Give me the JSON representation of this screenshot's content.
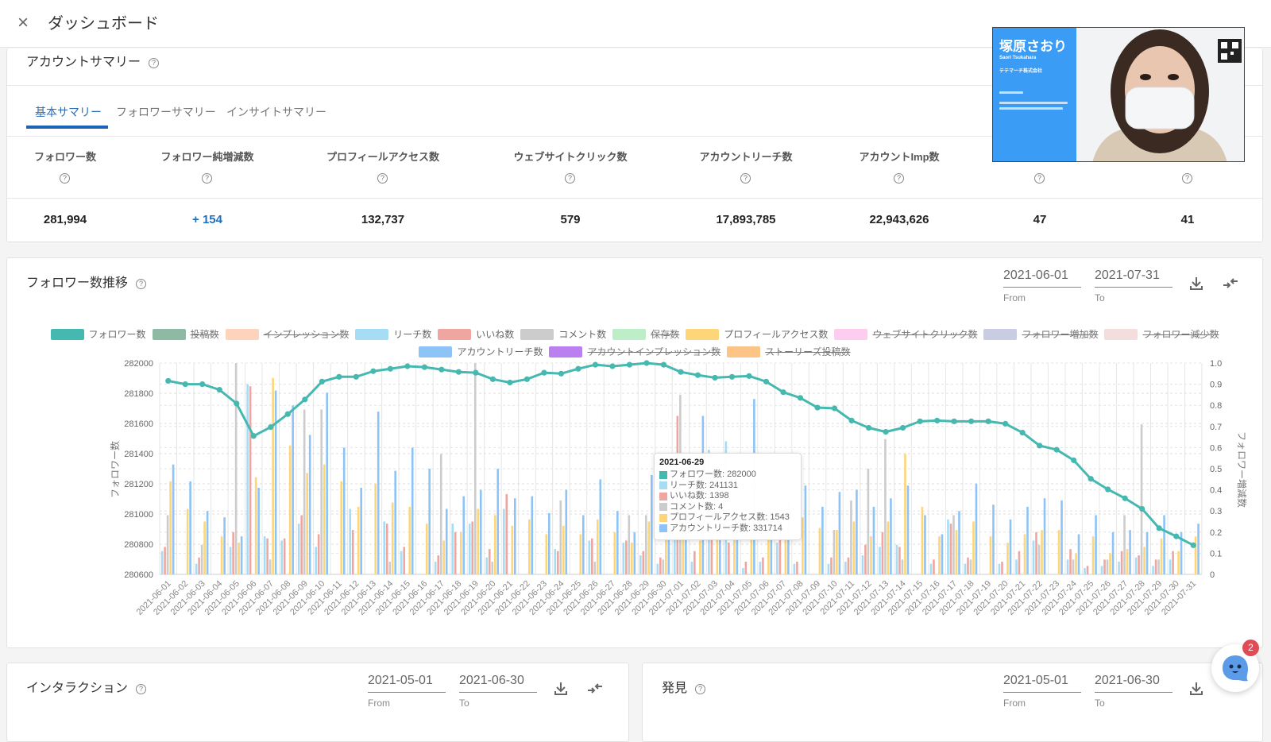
{
  "header": {
    "title": "ダッシュボード",
    "close": "×"
  },
  "summary": {
    "title": "アカウントサマリー",
    "help": "?",
    "tabs": [
      {
        "label": "基本サマリー",
        "active": true
      },
      {
        "label": "フォロワーサマリー",
        "active": false
      },
      {
        "label": "インサイトサマリー",
        "active": false
      }
    ],
    "metrics": [
      {
        "label": "フォロワー数",
        "value": "281,994"
      },
      {
        "label": "フォロワー純増減数",
        "value": "+ 154"
      },
      {
        "label": "プロフィールアクセス数",
        "value": "132,737"
      },
      {
        "label": "ウェブサイトクリック数",
        "value": "579"
      },
      {
        "label": "アカウントリーチ数",
        "value": "17,893,785"
      },
      {
        "label": "アカウントImp数",
        "value": "22,943,626"
      },
      {
        "label": "",
        "value": "47"
      },
      {
        "label": "",
        "value": "41"
      }
    ]
  },
  "trend": {
    "title": "フォロワー数推移",
    "from": {
      "value": "2021-06-01",
      "label": "From"
    },
    "to": {
      "value": "2021-07-31",
      "label": "To"
    },
    "tooltip": {
      "date": "2021-06-29",
      "rows": [
        {
          "label": "フォロワー数: 282000",
          "color": "#45b8b0"
        },
        {
          "label": "リーチ数: 241131",
          "color": "#a6ddf5"
        },
        {
          "label": "いいね数: 1398",
          "color": "#f0a6a0"
        },
        {
          "label": "コメント数: 4",
          "color": "#cccccc"
        },
        {
          "label": "プロフィールアクセス数: 1543",
          "color": "#fcd679"
        },
        {
          "label": "アカウントリーチ数: 331714",
          "color": "#8ec3f7"
        }
      ]
    }
  },
  "interaction": {
    "title": "インタラクション",
    "from": {
      "value": "2021-05-01",
      "label": "From"
    },
    "to": {
      "value": "2021-06-30",
      "label": "To"
    }
  },
  "discovery": {
    "title": "発見",
    "from": {
      "value": "2021-05-01",
      "label": "From"
    },
    "to": {
      "value": "2021-06-30",
      "label": "To"
    }
  },
  "video": {
    "name": "塚原さおり",
    "name_en": "Saori Tsukahara",
    "company": "テテマーチ株式会社"
  },
  "chat": {
    "badge": "2"
  },
  "colors": {
    "accent": "#1f6fc0",
    "line": "#45b8b0",
    "badge": "#e04b55",
    "video_panel": "#3a9cf4"
  },
  "chart_data": {
    "type": "bar+line",
    "title": "フォロワー数推移",
    "xlabel": "",
    "ylabel_left": "フォロワー数",
    "ylabel_right": "フォロワー増減数",
    "y_left": {
      "range": [
        280600,
        282000
      ],
      "ticks": [
        "280600",
        "280800",
        "281000",
        "281200",
        "281400",
        "281600",
        "281800",
        "282000"
      ]
    },
    "y_right": {
      "range": [
        0,
        1
      ],
      "ticks": [
        "0",
        "0.1",
        "0.2",
        "0.3",
        "0.4",
        "0.5",
        "0.6",
        "0.7",
        "0.8",
        "0.9",
        "1.0"
      ]
    },
    "grid": true,
    "legend_position": "top-center",
    "legend": [
      {
        "name": "フォロワー数",
        "color": "#45b8b0",
        "hidden": false
      },
      {
        "name": "投稿数",
        "color": "#8db9a5",
        "hidden": true
      },
      {
        "name": "インプレッション数",
        "color": "#fdd3bb",
        "hidden": true
      },
      {
        "name": "リーチ数",
        "color": "#a6ddf5",
        "hidden": false
      },
      {
        "name": "いいね数",
        "color": "#f0a6a0",
        "hidden": false
      },
      {
        "name": "コメント数",
        "color": "#cccccc",
        "hidden": false
      },
      {
        "name": "保存数",
        "color": "#bdeec8",
        "hidden": true
      },
      {
        "name": "プロフィールアクセス数",
        "color": "#fcd679",
        "hidden": false
      },
      {
        "name": "ウェブサイトクリック数",
        "color": "#fdcdef",
        "hidden": true
      },
      {
        "name": "フォロワー増加数",
        "color": "#c9cce2",
        "hidden": true
      },
      {
        "name": "フォロワー減少数",
        "color": "#f3dddd",
        "hidden": true
      },
      {
        "name": "アカウントリーチ数",
        "color": "#8ec3f7",
        "hidden": false
      },
      {
        "name": "アカウントインプレッション数",
        "color": "#bb80f0",
        "hidden": true
      },
      {
        "name": "ストーリーズ投稿数",
        "color": "#fcc487",
        "hidden": true
      }
    ],
    "categories": [
      "2021-06-01",
      "2021-06-02",
      "2021-06-03",
      "2021-06-04",
      "2021-06-05",
      "2021-06-06",
      "2021-06-07",
      "2021-06-08",
      "2021-06-09",
      "2021-06-10",
      "2021-06-11",
      "2021-06-12",
      "2021-06-13",
      "2021-06-14",
      "2021-06-15",
      "2021-06-16",
      "2021-06-17",
      "2021-06-18",
      "2021-06-19",
      "2021-06-20",
      "2021-06-21",
      "2021-06-22",
      "2021-06-23",
      "2021-06-24",
      "2021-06-25",
      "2021-06-26",
      "2021-06-27",
      "2021-06-28",
      "2021-06-29",
      "2021-06-30",
      "2021-07-01",
      "2021-07-02",
      "2021-07-03",
      "2021-07-04",
      "2021-07-05",
      "2021-07-06",
      "2021-07-07",
      "2021-07-08",
      "2021-07-09",
      "2021-07-10",
      "2021-07-11",
      "2021-07-12",
      "2021-07-13",
      "2021-07-14",
      "2021-07-15",
      "2021-07-16",
      "2021-07-17",
      "2021-07-18",
      "2021-07-19",
      "2021-07-20",
      "2021-07-21",
      "2021-07-22",
      "2021-07-23",
      "2021-07-24",
      "2021-07-25",
      "2021-07-26",
      "2021-07-27",
      "2021-07-28",
      "2021-07-29",
      "2021-07-30",
      "2021-07-31"
    ],
    "line_series": {
      "name": "フォロワー数",
      "color": "#45b8b0",
      "axis": "left",
      "values": [
        281882,
        281860,
        281860,
        281823,
        281732,
        281517,
        281576,
        281662,
        281759,
        281877,
        281909,
        281909,
        281946,
        281962,
        281979,
        281973,
        281957,
        281941,
        281936,
        281893,
        281871,
        281893,
        281936,
        281930,
        281962,
        281989,
        281979,
        281989,
        282000,
        281989,
        281941,
        281920,
        281903,
        281909,
        281914,
        281877,
        281807,
        281769,
        281705,
        281700,
        281619,
        281571,
        281544,
        281571,
        281614,
        281619,
        281614,
        281614,
        281614,
        281598,
        281539,
        281453,
        281426,
        281356,
        281233,
        281163,
        281104,
        281034,
        280906,
        280852,
        280793
      ]
    },
    "bar_series_note": "bar values are normalized heights (0-1) relative to each series' own hidden axis",
    "bar_series": [
      {
        "key": "reach",
        "name": "リーチ数",
        "color": "#a6ddf5",
        "values": [
          0.11,
          0,
          0.05,
          0,
          0.13,
          0.9,
          0.18,
          0.16,
          0.24,
          0.13,
          0,
          0.31,
          0,
          0.25,
          0.11,
          0,
          0.06,
          0.24,
          0.24,
          0.08,
          0.31,
          0,
          0,
          0.12,
          0,
          0.16,
          0,
          0.15,
          0.09,
          0.05,
          0.2,
          0.06,
          0.59,
          0.63,
          0.03,
          0.06,
          0.15,
          0.05,
          0,
          0.05,
          0.06,
          0.09,
          0.13,
          0.14,
          0,
          0.05,
          0.26,
          0.05,
          0,
          0.05,
          0.07,
          0.16,
          0,
          0.07,
          0.03,
          0.04,
          0.06,
          0.08,
          0.04,
          0.07,
          0
        ]
      },
      {
        "key": "likes",
        "name": "いいね数",
        "color": "#f0a6a0",
        "values": [
          0.13,
          0,
          0.08,
          0,
          0.2,
          0.89,
          0.17,
          0.17,
          0.28,
          0.19,
          0,
          0.21,
          0,
          0.24,
          0.13,
          0,
          0.09,
          0.2,
          0.25,
          0.12,
          0.38,
          0,
          0,
          0.11,
          0,
          0.17,
          0,
          0.16,
          0.11,
          0.08,
          0.75,
          0.11,
          0.2,
          0.15,
          0.06,
          0.08,
          0.2,
          0.06,
          0,
          0.08,
          0.08,
          0.14,
          0.2,
          0.13,
          0,
          0.07,
          0.24,
          0.08,
          0,
          0.06,
          0.11,
          0.2,
          0,
          0.12,
          0.04,
          0.07,
          0.11,
          0.09,
          0.07,
          0.11,
          0
        ]
      },
      {
        "key": "comments",
        "name": "コメント数",
        "color": "#cccccc",
        "values": [
          0.28,
          0,
          0.14,
          0,
          1.0,
          0,
          0.07,
          0,
          0.78,
          0.78,
          0,
          0,
          0,
          0.06,
          0,
          0,
          0.57,
          0,
          1.0,
          0.06,
          0,
          0,
          0,
          0.35,
          0,
          0.06,
          0,
          0.28,
          0.28,
          0.07,
          0.85,
          0,
          0,
          0,
          0,
          0,
          0,
          0,
          0,
          0.21,
          0.35,
          0.5,
          0.64,
          0.07,
          0,
          0,
          0.28,
          0.07,
          0,
          0,
          0,
          0.14,
          0,
          0.07,
          0,
          0.07,
          0.28,
          0.71,
          0.07,
          0,
          0
        ]
      },
      {
        "key": "profile",
        "name": "プロフィールアクセス数",
        "color": "#fcd679",
        "values": [
          0.44,
          0.31,
          0.25,
          0.18,
          0.15,
          0.46,
          0.93,
          0.61,
          0.48,
          0.52,
          0.44,
          0.32,
          0.43,
          0.34,
          0.32,
          0.24,
          0.16,
          0.2,
          0.31,
          0.28,
          0.23,
          0.26,
          0.19,
          0.23,
          0.19,
          0.26,
          0.2,
          0.15,
          0.25,
          0.31,
          0.28,
          0.16,
          0.2,
          0.18,
          0.2,
          0.22,
          0.2,
          0.27,
          0.22,
          0.21,
          0.25,
          0.18,
          0.25,
          0.57,
          0.32,
          0.18,
          0.21,
          0.25,
          0.18,
          0.15,
          0.19,
          0.21,
          0.21,
          0.1,
          0.18,
          0.1,
          0.12,
          0.13,
          0.17,
          0.11,
          0.18
        ]
      },
      {
        "key": "account-reach",
        "name": "アカウントリーチ数",
        "color": "#8ec3f7",
        "values": [
          0.52,
          0.44,
          0.3,
          0.27,
          0.18,
          0.41,
          0.87,
          0.8,
          0.66,
          0.86,
          0.6,
          0.41,
          0.77,
          0.49,
          0.6,
          0.5,
          0.31,
          0.37,
          0.4,
          0.5,
          0.36,
          0.37,
          0.29,
          0.4,
          0.28,
          0.45,
          0.3,
          0.2,
          0.47,
          0.36,
          0.31,
          0.75,
          0.3,
          0.25,
          0.83,
          0.3,
          0.35,
          0.42,
          0.32,
          0.39,
          0.4,
          0.32,
          0.36,
          0.42,
          0.28,
          0.19,
          0.3,
          0.43,
          0.33,
          0.26,
          0.32,
          0.36,
          0.35,
          0.19,
          0.28,
          0.2,
          0.21,
          0.2,
          0.28,
          0.2,
          0.24
        ]
      }
    ]
  }
}
